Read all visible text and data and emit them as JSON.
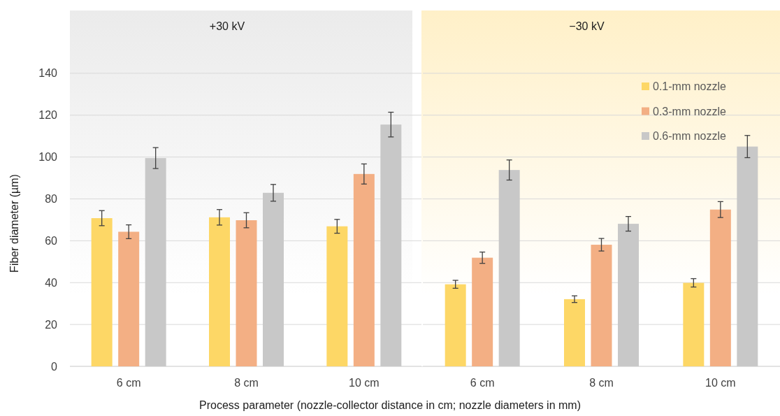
{
  "chart_data": [
    {
      "type": "bar",
      "title": "+30 kV",
      "ylabel": "Fiber diameter (µm)",
      "xlabel": "Process parameter (nozzle-collector distance in cm; nozzle diameters in mm)",
      "categories": [
        "6 cm",
        "8 cm",
        "10 cm"
      ],
      "ylim": [
        0,
        170
      ],
      "yticks": [
        0,
        20,
        40,
        60,
        80,
        100,
        120,
        140
      ],
      "grid": "y",
      "legend": false,
      "series": [
        {
          "color": "#fdd766",
          "values": [
            70.8,
            71.2,
            66.9
          ],
          "errors": [
            3.6,
            3.7,
            3.3
          ]
        },
        {
          "color": "#f3af84",
          "values": [
            64.3,
            69.8,
            91.9
          ],
          "errors": [
            3.3,
            3.6,
            4.8
          ]
        },
        {
          "color": "#c8c8c8",
          "values": [
            99.5,
            82.9,
            115.5
          ],
          "errors": [
            5,
            4,
            5.9
          ]
        }
      ]
    },
    {
      "type": "bar",
      "title": "−30 kV",
      "categories": [
        "6 cm",
        "8 cm",
        "10 cm"
      ],
      "ylim": [
        0,
        170
      ],
      "yticks": [
        0,
        20,
        40,
        60,
        80,
        100,
        120,
        140
      ],
      "grid": "y",
      "legend": "top right",
      "tick_labels": "x",
      "series": [
        {
          "name": "0.1-mm nozzle",
          "color": "#fdd766",
          "values": [
            39.2,
            32.1,
            39.9
          ],
          "errors": [
            1.9,
            1.6,
            2
          ]
        },
        {
          "name": "0.3-mm nozzle",
          "color": "#f3af84",
          "values": [
            51.9,
            58.1,
            74.9
          ],
          "errors": [
            2.7,
            3,
            3.8
          ]
        },
        {
          "name": "0.6-mm nozzle",
          "color": "#c8c8c8",
          "values": [
            93.8,
            68.1,
            105
          ],
          "errors": [
            4.8,
            3.5,
            5.3
          ]
        }
      ]
    }
  ]
}
